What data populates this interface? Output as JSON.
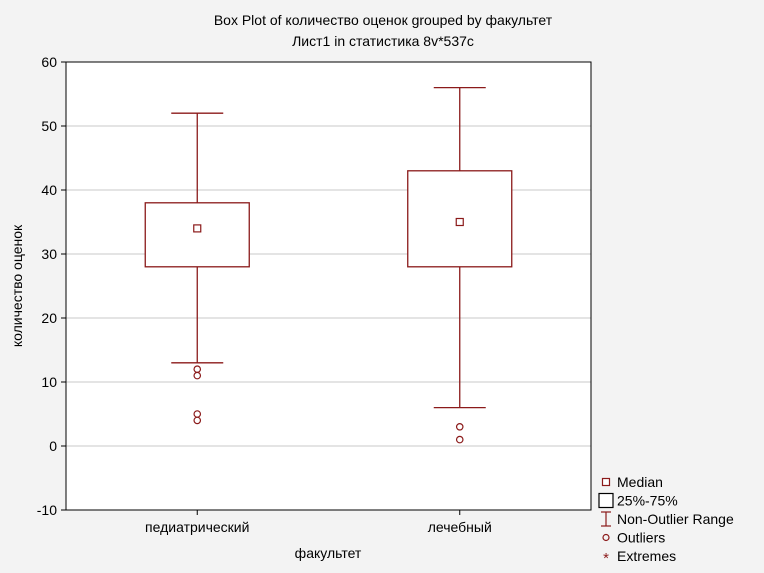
{
  "chart_data": {
    "type": "boxplot",
    "title": "Box Plot of количество оценок grouped by  факультет",
    "subtitle": "Лист1 in статистика 8v*537c",
    "xlabel": "факультет",
    "ylabel": "количество оценок",
    "ylim": [
      -10,
      60
    ],
    "yticks": [
      "60",
      "50",
      "40",
      "30",
      "20",
      "10",
      "0",
      "-10"
    ],
    "grid": true,
    "legend_position": "bottom-right",
    "colors": {
      "box": "#8b1a1a",
      "grid": "#c8c8c8",
      "plot_bg": "#ffffff",
      "page_bg": "#f3f3f3"
    },
    "categories": [
      "педиатрический",
      "лечебный"
    ],
    "groups": [
      {
        "category": "педиатрический",
        "median": 34,
        "q1": 28,
        "q3": 38,
        "whisker_low": 13,
        "whisker_high": 52,
        "outliers": [
          12,
          11,
          5,
          4
        ],
        "extremes": []
      },
      {
        "category": "лечебный",
        "median": 35,
        "q1": 28,
        "q3": 43,
        "whisker_low": 6,
        "whisker_high": 56,
        "outliers": [
          3,
          1
        ],
        "extremes": []
      }
    ],
    "legend": [
      {
        "label": "Median",
        "symbol": "small-square-icon"
      },
      {
        "label": "25%-75%",
        "symbol": "box-square-icon"
      },
      {
        "label": "Non-Outlier Range",
        "symbol": "whisker-icon"
      },
      {
        "label": "Outliers",
        "symbol": "circle-icon"
      },
      {
        "label": "Extremes",
        "symbol": "asterisk-icon"
      }
    ]
  }
}
